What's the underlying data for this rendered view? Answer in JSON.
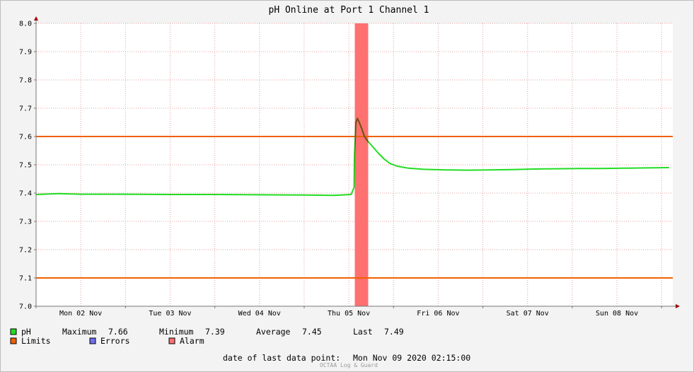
{
  "chart_data": {
    "type": "line",
    "title": "pH Online at Port 1 Channel 1",
    "ylim": [
      7.0,
      8.0
    ],
    "y_ticks": [
      "7.0",
      "7.1",
      "7.2",
      "7.3",
      "7.4",
      "7.5",
      "7.6",
      "7.7",
      "7.8",
      "7.9",
      "8.0"
    ],
    "x_range_hours": [
      0,
      171
    ],
    "x_tick_labels": [
      "Mon 02 Nov",
      "Tue 03 Nov",
      "Wed 04 Nov",
      "Thu 05 Nov",
      "Fri 06 Nov",
      "Sat 07 Nov",
      "Sun 08 Nov"
    ],
    "x_tick_hours_major": [
      0,
      24,
      48,
      72,
      96,
      120,
      144,
      168
    ],
    "x_tick_hours_minor": [
      12,
      36,
      60,
      84,
      108,
      132,
      156
    ],
    "x_label_hours": [
      12,
      36,
      60,
      84,
      108,
      132,
      156
    ],
    "grid": true,
    "limits": {
      "upper": 7.6,
      "lower": 7.1
    },
    "alarm_band_hours": [
      85.6,
      89.2
    ],
    "series": [
      {
        "name": "pH",
        "x_hours": [
          -9.5,
          0,
          6,
          12,
          24,
          36,
          48,
          60,
          72,
          80,
          84.6,
          85.4,
          85.5,
          85.6,
          85.9,
          86.3,
          86.8,
          87.4,
          88.2,
          89,
          90,
          91,
          92,
          93.5,
          95,
          97,
          100,
          104,
          110,
          116,
          122,
          128,
          134,
          140,
          146,
          152,
          158,
          164,
          170
        ],
        "values": [
          7.39,
          7.395,
          7.398,
          7.396,
          7.396,
          7.395,
          7.395,
          7.394,
          7.393,
          7.392,
          7.395,
          7.42,
          7.53,
          7.56,
          7.65,
          7.664,
          7.65,
          7.63,
          7.6,
          7.585,
          7.57,
          7.555,
          7.54,
          7.52,
          7.505,
          7.495,
          7.488,
          7.484,
          7.482,
          7.481,
          7.482,
          7.483,
          7.485,
          7.486,
          7.487,
          7.487,
          7.488,
          7.489,
          7.49
        ]
      }
    ]
  },
  "legend": {
    "items": [
      {
        "label": "pH",
        "color": "#22dd22"
      },
      {
        "label": "Limits",
        "color": "#f06000"
      },
      {
        "label": "Errors",
        "color": "#7070ee"
      },
      {
        "label": "Alarm",
        "color": "#ff7070"
      }
    ],
    "stats": {
      "maximum_label": "Maximum",
      "maximum_value": "7.66",
      "minimum_label": "Minimum",
      "minimum_value": "7.39",
      "average_label": "Average",
      "average_value": "7.45",
      "last_label": "Last",
      "last_value": "7.49"
    }
  },
  "footer": {
    "last_point_label": "date of last data point:",
    "last_point_value": "Mon Nov 09 2020 02:15:00",
    "watermark": "OCTAA Log & Guard"
  },
  "colors": {
    "series": "#22dd22",
    "series_alarm": "#7a4a10",
    "limits": "#f06000",
    "alarm": "#ff7070",
    "grid": "#e4a0a0",
    "axis": "#a00000"
  }
}
